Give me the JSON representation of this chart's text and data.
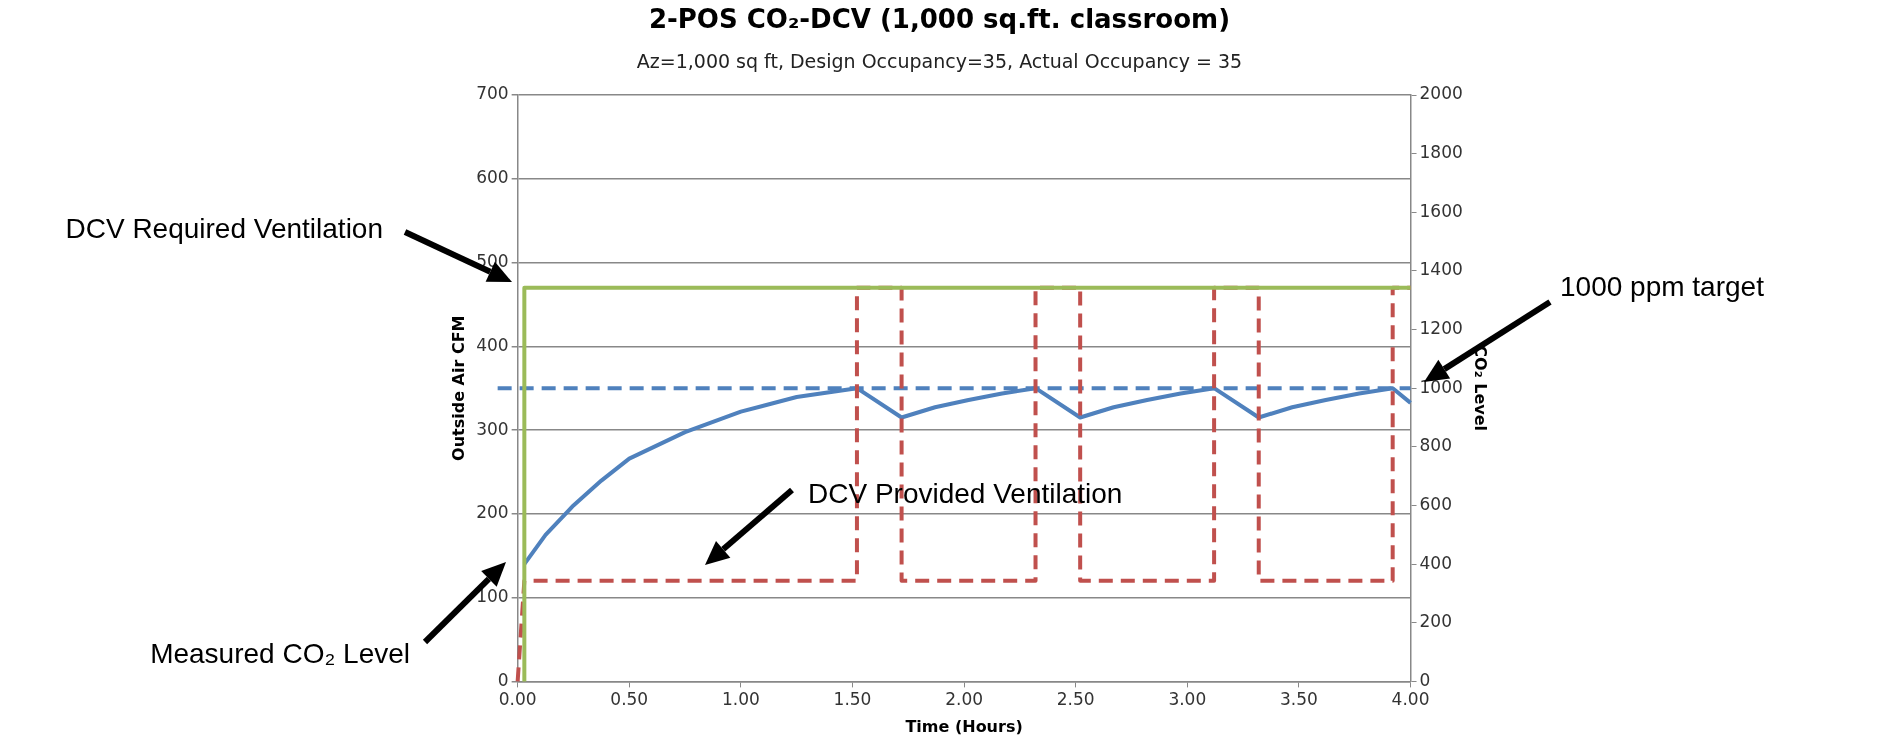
{
  "chart_data": {
    "type": "line",
    "title": "2-POS CO₂-DCV (1,000 sq.ft. classroom)",
    "subtitle": "Az=1,000 sq ft, Design Occupancy=35, Actual Occupancy = 35",
    "xlabel": "Time (Hours)",
    "ylabel": "Outside Air CFM",
    "y2label": "CO₂ Level",
    "xlim": [
      0,
      4
    ],
    "xticks": [
      {
        "value": 0,
        "label": "0.00"
      },
      {
        "value": 0.5,
        "label": "0.50"
      },
      {
        "value": 1,
        "label": "1.00"
      },
      {
        "value": 1.5,
        "label": "1.50"
      },
      {
        "value": 2,
        "label": "2.00"
      },
      {
        "value": 2.5,
        "label": "2.50"
      },
      {
        "value": 3,
        "label": "3.00"
      },
      {
        "value": 3.5,
        "label": "3.50"
      },
      {
        "value": 4,
        "label": "4.00"
      }
    ],
    "ylim": [
      0,
      700
    ],
    "yticks": [
      0,
      100,
      200,
      300,
      400,
      500,
      600,
      700
    ],
    "y2lim": [
      0,
      2000
    ],
    "y2ticks": [
      0,
      200,
      400,
      600,
      800,
      1000,
      1200,
      1400,
      1600,
      1800,
      2000
    ],
    "grid": "y",
    "legend": false,
    "marker": "none",
    "series": [
      {
        "type": "line",
        "color": "#9bbb59",
        "line_style": "solid",
        "x": [
          0.03,
          0.03,
          4.0
        ],
        "values": [
          0,
          470,
          470
        ]
      },
      {
        "type": "line",
        "color": "#c0504d",
        "line_style": "dashed",
        "x": [
          0,
          0.03,
          1.52,
          1.52,
          1.72,
          1.72,
          2.32,
          2.32,
          2.52,
          2.52,
          3.12,
          3.12,
          3.32,
          3.32,
          3.92,
          3.92,
          4.0
        ],
        "values": [
          0,
          120,
          120,
          470,
          470,
          120,
          120,
          470,
          470,
          120,
          120,
          470,
          470,
          120,
          120,
          470,
          470
        ]
      },
      {
        "type": "line",
        "axis": "y2",
        "color": "#4f81bd",
        "line_style": "solid",
        "x": [
          0.03,
          0.125,
          0.25,
          0.375,
          0.5,
          0.75,
          1.0,
          1.25,
          1.52,
          1.72,
          1.87,
          2.02,
          2.17,
          2.32,
          2.52,
          2.67,
          2.82,
          2.97,
          3.12,
          3.32,
          3.47,
          3.62,
          3.77,
          3.92,
          4.0
        ],
        "values": [
          400,
          500,
          600,
          685,
          760,
          850,
          920,
          970,
          1000,
          900,
          935,
          960,
          982,
          1000,
          900,
          935,
          960,
          982,
          1000,
          900,
          935,
          960,
          982,
          1000,
          950
        ]
      }
    ],
    "ref_lines": [
      {
        "axis": "y2",
        "value": 1000,
        "color": "#4f81bd",
        "line_style": "dashed"
      }
    ],
    "annotations": [
      "DCV Required Ventilation",
      "Measured CO₂ Level",
      "DCV Provided Ventilation",
      "1000 ppm target"
    ]
  }
}
